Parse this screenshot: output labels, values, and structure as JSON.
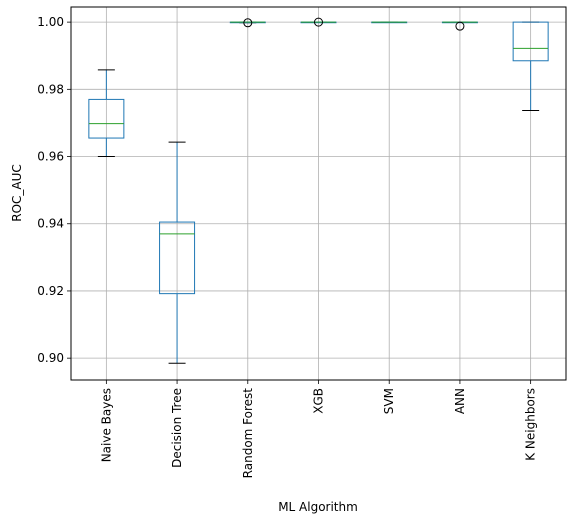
{
  "chart_data": {
    "type": "box",
    "xlabel": "ML Algorithm",
    "ylabel": "ROC_AUC",
    "ylim": [
      0.8935,
      1.0045
    ],
    "y_ticks": [
      "0.90",
      "0.92",
      "0.94",
      "0.96",
      "0.98",
      "1.00"
    ],
    "y_tick_values": [
      0.9,
      0.92,
      0.94,
      0.96,
      0.98,
      1.0
    ],
    "grid": true,
    "categories": [
      "Naive Bayes",
      "Decision Tree",
      "Random Forest",
      "XGB",
      "SVM",
      "ANN",
      "K Neighbors"
    ],
    "boxes": [
      {
        "whislo": 0.96,
        "q1": 0.9655,
        "med": 0.9698,
        "q3": 0.977,
        "whishi": 0.9858,
        "fliers": []
      },
      {
        "whislo": 0.8985,
        "q1": 0.9192,
        "med": 0.937,
        "q3": 0.9405,
        "whishi": 0.9643,
        "fliers": []
      },
      {
        "whislo": 0.9998,
        "q1": 0.9999,
        "med": 1.0,
        "q3": 1.0,
        "whishi": 1.0,
        "fliers": [
          0.9998
        ]
      },
      {
        "whislo": 0.9999,
        "q1": 0.99995,
        "med": 1.0,
        "q3": 1.0,
        "whishi": 1.0,
        "fliers": [
          1.0
        ]
      },
      {
        "whislo": 1.0,
        "q1": 1.0,
        "med": 1.0,
        "q3": 1.0,
        "whishi": 1.0,
        "fliers": []
      },
      {
        "whislo": 0.9999,
        "q1": 0.99995,
        "med": 1.0,
        "q3": 1.0,
        "whishi": 1.0,
        "fliers": [
          0.9988
        ]
      },
      {
        "whislo": 0.9737,
        "q1": 0.9885,
        "med": 0.9922,
        "q3": 1.0,
        "whishi": 1.0,
        "fliers": []
      }
    ],
    "colors": {
      "box": "#1f77b4",
      "median": "#2ca02c",
      "whisker_cap": "#000000",
      "flier": "#000000",
      "grid": "#b0b0b0",
      "axis": "#000000"
    }
  }
}
